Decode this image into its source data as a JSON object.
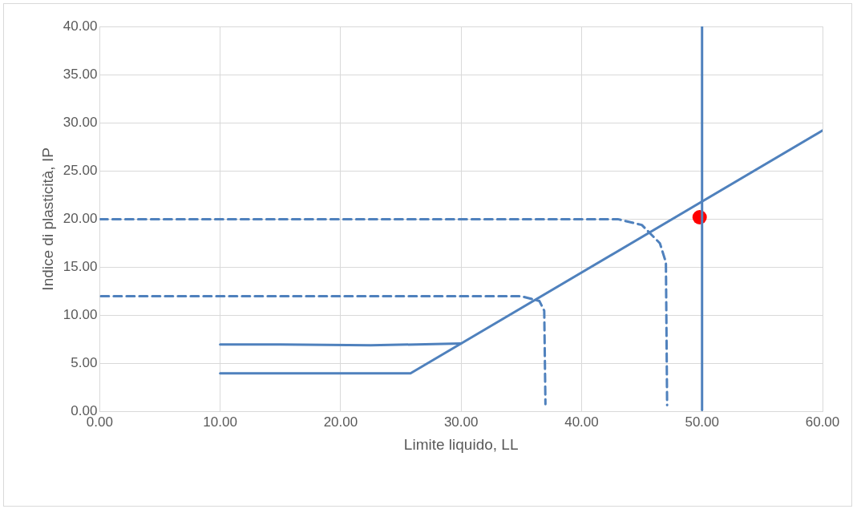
{
  "chart_data": {
    "type": "line",
    "xlabel": "Limite liquido, LL",
    "ylabel": "Indice di plasticità, IP",
    "xlim": [
      0,
      60
    ],
    "ylim": [
      0,
      40
    ],
    "xticks": [
      {
        "value": 0,
        "label": "0.00"
      },
      {
        "value": 10,
        "label": "10.00"
      },
      {
        "value": 20,
        "label": "20.00"
      },
      {
        "value": 30,
        "label": "30.00"
      },
      {
        "value": 40,
        "label": "40.00"
      },
      {
        "value": 50,
        "label": "50.00"
      },
      {
        "value": 60,
        "label": "60.00"
      }
    ],
    "yticks": [
      {
        "value": 0,
        "label": "0.00"
      },
      {
        "value": 5,
        "label": "5.00"
      },
      {
        "value": 10,
        "label": "10.00"
      },
      {
        "value": 15,
        "label": "15.00"
      },
      {
        "value": 20,
        "label": "20.00"
      },
      {
        "value": 25,
        "label": "25.00"
      },
      {
        "value": 30,
        "label": "30.00"
      },
      {
        "value": 35,
        "label": "35.00"
      },
      {
        "value": 40,
        "label": "40.00"
      }
    ],
    "grid": true,
    "marker": "none",
    "legend": false,
    "series": [
      {
        "line_style": "solid",
        "color": "#4f81bd",
        "x": [
          10,
          15,
          20,
          25.8,
          60
        ],
        "values": [
          4,
          4,
          4,
          4,
          29.2
        ]
      },
      {
        "line_style": "solid",
        "color": "#4f81bd",
        "x": [
          10,
          15,
          22.5,
          30
        ],
        "values": [
          7,
          7,
          6.9,
          7.1
        ]
      },
      {
        "line_style": "solid",
        "color": "#4f81bd",
        "x": [
          50,
          50
        ],
        "values": [
          0.2,
          40
        ]
      },
      {
        "line_style": "dashed",
        "color": "#4f81bd",
        "x": [
          0,
          10,
          20,
          30,
          40,
          43,
          45,
          46.5,
          47,
          47.1
        ],
        "values": [
          20,
          20,
          20,
          20,
          20,
          20,
          19.4,
          17.5,
          15.5,
          0.7
        ]
      },
      {
        "line_style": "dashed",
        "color": "#4f81bd",
        "x": [
          0.1,
          10,
          20,
          30,
          35,
          36.5,
          36.9,
          37
        ],
        "values": [
          12,
          12,
          12,
          12,
          12,
          11.5,
          10.5,
          0.8
        ]
      },
      {
        "type": "scatter",
        "marker": "circle",
        "color": "#ff0000",
        "x": [
          49.8
        ],
        "values": [
          20.2
        ]
      }
    ]
  }
}
